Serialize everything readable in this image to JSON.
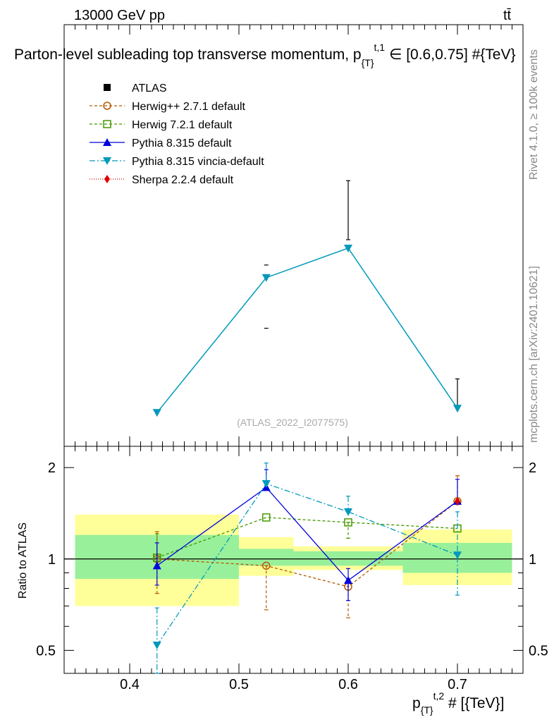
{
  "header": {
    "energy": "13000 GeV pp",
    "process": "tt̄"
  },
  "main_plot": {
    "title_prefix": "Parton-level subleading top transverse momentum, p",
    "title_sub": "{T}",
    "title_sup": "t,1",
    "title_suffix": "∈ [0.6,0.75] #{TeV}",
    "watermark": "(ATLAS_2022_I2077575)"
  },
  "side": {
    "rivet": "Rivet 4.1.0, ≥ 100k events",
    "mcplots": "mcplots.cern.ch [arXiv:2401.10621]"
  },
  "ratio_panel": {
    "ylabel": "Ratio to ATLAS"
  },
  "x_axis": {
    "label_main": "p",
    "label_sub": "{T}",
    "label_sup": "t,2",
    "label_suffix": " # [{TeV}]"
  },
  "legend": [
    {
      "name": "ATLAS",
      "color": "#000000",
      "marker": "square-filled",
      "dash": "none"
    },
    {
      "name": "Herwig++ 2.7.1 default",
      "color": "#b35900",
      "marker": "circle-open",
      "dash": "4,3"
    },
    {
      "name": "Herwig 7.2.1 default",
      "color": "#449900",
      "marker": "square-open",
      "dash": "4,3"
    },
    {
      "name": "Pythia 8.315 default",
      "color": "#0000dd",
      "marker": "triangle-up",
      "dash": ""
    },
    {
      "name": "Pythia 8.315 vincia-default",
      "color": "#0099bb",
      "marker": "triangle-down",
      "dash": "8,3,2,3"
    },
    {
      "name": "Sherpa 2.2.4 default",
      "color": "#dd0000",
      "marker": "diamond",
      "dash": "1,2"
    }
  ],
  "chart_data": [
    {
      "type": "line",
      "panel": "main",
      "title": "Parton-level subleading top transverse momentum",
      "xlim": [
        0.34,
        0.76
      ],
      "ylim": [
        0,
        1
      ],
      "x": [
        0.425,
        0.525,
        0.6,
        0.7
      ],
      "series": [
        {
          "name": "ATLAS",
          "values": [
            null,
            null,
            0.56,
            0.125
          ],
          "err_up": [
            null,
            0.43,
            0.07,
            0.035
          ],
          "err_down": [
            null,
            0.28,
            0.07,
            0.035
          ]
        },
        {
          "name": "Pythia 8.315 vincia-default",
          "values": [
            0.08,
            0.4,
            0.47,
            0.09
          ]
        }
      ]
    },
    {
      "type": "line",
      "panel": "ratio",
      "ylabel": "Ratio to ATLAS",
      "xlabel": "p_{T}^{t,2} # [{TeV}]",
      "xlim": [
        0.34,
        0.76
      ],
      "ylim": [
        0.42,
        2.35
      ],
      "log_y": true,
      "x_ticks": [
        "0.4",
        "0.5",
        "0.6",
        "0.7"
      ],
      "y_ticks": [
        "0.5",
        "1",
        "2"
      ],
      "bins": [
        [
          0.35,
          0.5
        ],
        [
          0.5,
          0.55
        ],
        [
          0.55,
          0.65
        ],
        [
          0.65,
          0.75
        ]
      ],
      "band_green": [
        [
          0.86,
          1.2
        ],
        [
          0.95,
          1.08
        ],
        [
          0.95,
          1.06
        ],
        [
          0.9,
          1.13
        ]
      ],
      "band_yellow": [
        [
          0.7,
          1.4
        ],
        [
          0.88,
          1.18
        ],
        [
          0.92,
          1.1
        ],
        [
          0.82,
          1.25
        ]
      ],
      "x": [
        0.425,
        0.525,
        0.6,
        0.7
      ],
      "series": [
        {
          "name": "Herwig++ 2.7.1 default",
          "values": [
            1.0,
            0.95,
            0.81,
            1.55
          ],
          "err_up": [
            0.23,
            0.0,
            0.05,
            0.33
          ],
          "err_down": [
            0.23,
            0.27,
            0.17,
            0.0
          ]
        },
        {
          "name": "Herwig 7.2.1 default",
          "values": [
            1.01,
            1.37,
            1.32,
            1.26
          ],
          "err_up": [
            0.2,
            0.0,
            0.0,
            0.0
          ],
          "err_down": [
            0.0,
            0.0,
            0.15,
            0.0
          ]
        },
        {
          "name": "Pythia 8.315 default",
          "values": [
            0.95,
            1.72,
            0.85,
            1.55
          ],
          "err_up": [
            0.18,
            0.25,
            0.08,
            0.28
          ],
          "err_down": [
            0.13,
            0.0,
            0.12,
            0.0
          ]
        },
        {
          "name": "Pythia 8.315 vincia-default",
          "values": [
            0.52,
            1.77,
            1.43,
            1.03
          ],
          "err_up": [
            0.17,
            0.3,
            0.18,
            0.4
          ],
          "err_down": [
            0.14,
            0.0,
            0.0,
            0.27
          ]
        },
        {
          "name": "Sherpa 2.2.4 default",
          "values": [
            null,
            null,
            null,
            1.55
          ]
        }
      ]
    }
  ]
}
